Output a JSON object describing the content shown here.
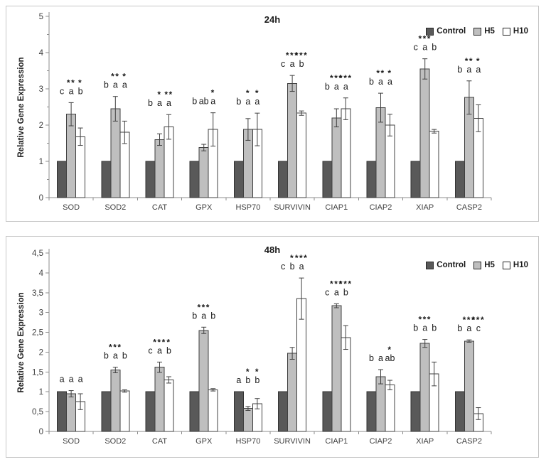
{
  "legend": {
    "position": "top-right",
    "items": [
      {
        "label": "Control",
        "fill": "#595959",
        "stroke": "#262626"
      },
      {
        "label": "H5",
        "fill": "#bfbfbf",
        "stroke": "#262626"
      },
      {
        "label": "H10",
        "fill": "#ffffff",
        "stroke": "#262626"
      }
    ]
  },
  "chart_data": [
    {
      "id": "24h",
      "type": "bar",
      "title": "24h",
      "xlabel": "",
      "ylabel": "Relative Gene Expression",
      "ylim": [
        0,
        5
      ],
      "grid": false,
      "legend_position": "top-right",
      "yticks": [
        {
          "v": 0,
          "label": "0"
        },
        {
          "v": 1,
          "label": "1"
        },
        {
          "v": 2,
          "label": "2"
        },
        {
          "v": 3,
          "label": "3"
        },
        {
          "v": 4,
          "label": "4"
        },
        {
          "v": 5,
          "label": "5"
        }
      ],
      "yminor_step": 0.5,
      "categories": [
        "SOD",
        "SOD2",
        "CAT",
        "GPX",
        "HSP70",
        "SURVIVIN",
        "CIAP1",
        "CIAP2",
        "XIAP",
        "CASP2"
      ],
      "series": [
        {
          "name": "Control",
          "fill": "#595959",
          "stroke": "#333333",
          "values": [
            1,
            1,
            1,
            1,
            1,
            1,
            1,
            1,
            1,
            1
          ],
          "errors": [
            0,
            0,
            0,
            0,
            0,
            0,
            0,
            0,
            0,
            0
          ]
        },
        {
          "name": "H5",
          "fill": "#bfbfbf",
          "stroke": "#404040",
          "values": [
            2.3,
            2.45,
            1.6,
            1.38,
            1.88,
            3.15,
            2.2,
            2.48,
            3.55,
            2.76
          ],
          "errors": [
            0.32,
            0.34,
            0.16,
            0.09,
            0.3,
            0.22,
            0.25,
            0.4,
            0.28,
            0.46
          ]
        },
        {
          "name": "H10",
          "fill": "#ffffff",
          "stroke": "#404040",
          "values": [
            1.68,
            1.8,
            1.95,
            1.88,
            1.88,
            2.33,
            2.45,
            2.0,
            1.83,
            2.19
          ],
          "errors": [
            0.24,
            0.31,
            0.34,
            0.46,
            0.45,
            0.06,
            0.3,
            0.3,
            0.05,
            0.37
          ]
        }
      ],
      "letters": [
        [
          "c",
          "a",
          "b"
        ],
        [
          "b",
          "a",
          "a"
        ],
        [
          "b",
          "a",
          "a"
        ],
        [
          "b",
          "ab",
          "a"
        ],
        [
          "b",
          "a",
          "a"
        ],
        [
          "c",
          "a",
          "b"
        ],
        [
          "b",
          "a",
          "a"
        ],
        [
          "b",
          "a",
          "a"
        ],
        [
          "c",
          "a",
          "b"
        ],
        [
          "b",
          "a",
          "a"
        ]
      ],
      "stars": [
        [
          "",
          "**",
          "*"
        ],
        [
          "",
          "**",
          "*"
        ],
        [
          "",
          "*",
          "**"
        ],
        [
          "",
          "",
          "*"
        ],
        [
          "",
          "*",
          "*"
        ],
        [
          "",
          "***",
          "***"
        ],
        [
          "",
          "***",
          "***"
        ],
        [
          "",
          "**",
          "*"
        ],
        [
          "",
          "***",
          ""
        ],
        [
          "",
          "**",
          "*"
        ]
      ]
    },
    {
      "id": "48h",
      "type": "bar",
      "title": "48h",
      "xlabel": "",
      "ylabel": "Relative Gene Expression",
      "ylim": [
        0,
        4.5
      ],
      "grid": false,
      "legend_position": "top-right",
      "yticks": [
        {
          "v": 0,
          "label": "0"
        },
        {
          "v": 0.5,
          "label": "0,5"
        },
        {
          "v": 1,
          "label": "1"
        },
        {
          "v": 1.5,
          "label": "1,5"
        },
        {
          "v": 2,
          "label": "2"
        },
        {
          "v": 2.5,
          "label": "2,5"
        },
        {
          "v": 3,
          "label": "3"
        },
        {
          "v": 3.5,
          "label": "3,5"
        },
        {
          "v": 4,
          "label": "4"
        },
        {
          "v": 4.5,
          "label": "4,5"
        }
      ],
      "yminor_step": 0,
      "categories": [
        "SOD",
        "SOD2",
        "CAT",
        "GPX",
        "HSP70",
        "SURVIVIN",
        "CIAP1",
        "CIAP2",
        "XIAP",
        "CASP2"
      ],
      "series": [
        {
          "name": "Control",
          "fill": "#595959",
          "stroke": "#333333",
          "values": [
            1,
            1,
            1,
            1,
            1,
            1,
            1,
            1,
            1,
            1
          ],
          "errors": [
            0,
            0,
            0,
            0,
            0,
            0,
            0,
            0,
            0,
            0
          ]
        },
        {
          "name": "H5",
          "fill": "#bfbfbf",
          "stroke": "#404040",
          "values": [
            0.95,
            1.55,
            1.62,
            2.55,
            0.58,
            1.97,
            3.17,
            1.38,
            2.22,
            2.28
          ],
          "errors": [
            0.08,
            0.07,
            0.13,
            0.08,
            0.05,
            0.15,
            0.05,
            0.18,
            0.1,
            0.03
          ]
        },
        {
          "name": "H10",
          "fill": "#ffffff",
          "stroke": "#404040",
          "values": [
            0.75,
            1.02,
            1.3,
            1.05,
            0.7,
            3.35,
            2.37,
            1.17,
            1.45,
            0.45
          ],
          "errors": [
            0.2,
            0.03,
            0.08,
            0.03,
            0.13,
            0.52,
            0.3,
            0.12,
            0.3,
            0.15
          ]
        }
      ],
      "letters": [
        [
          "a",
          "a",
          "a"
        ],
        [
          "b",
          "a",
          "b"
        ],
        [
          "c",
          "a",
          "b"
        ],
        [
          "b",
          "a",
          "b"
        ],
        [
          "a",
          "b",
          "b"
        ],
        [
          "c",
          "b",
          "a"
        ],
        [
          "c",
          "a",
          "b"
        ],
        [
          "b",
          "a",
          "ab"
        ],
        [
          "b",
          "a",
          "b"
        ],
        [
          "b",
          "a",
          "c"
        ]
      ],
      "stars": [
        [
          "",
          "",
          ""
        ],
        [
          "",
          "***",
          ""
        ],
        [
          "",
          "***",
          "*"
        ],
        [
          "",
          "***",
          ""
        ],
        [
          "",
          "*",
          "*"
        ],
        [
          "",
          "*",
          "***"
        ],
        [
          "",
          "***",
          "***"
        ],
        [
          "",
          "",
          "*"
        ],
        [
          "",
          "***",
          ""
        ],
        [
          "",
          "***",
          "***"
        ]
      ]
    }
  ]
}
